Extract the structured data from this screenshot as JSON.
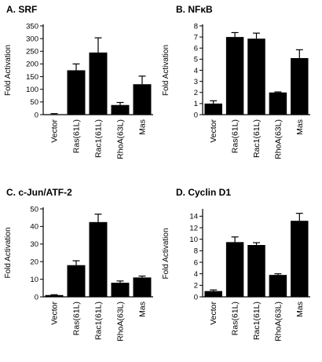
{
  "chart_data": [
    {
      "type": "bar",
      "title": "A. SRF",
      "ylabel": "Fold Activation",
      "xlabel": "",
      "categories": [
        "Vector",
        "Ras(61L)",
        "Rac1(61L)",
        "RhoA(63L)",
        "Mas"
      ],
      "values": [
        1,
        175,
        245,
        38,
        120
      ],
      "errors": [
        3,
        25,
        58,
        10,
        32
      ],
      "ylim": [
        0,
        350
      ],
      "yticks": [
        0,
        50,
        100,
        150,
        200,
        250,
        300,
        350
      ]
    },
    {
      "type": "bar",
      "title": "B. NFκB",
      "ylabel": "Fold Activation",
      "xlabel": "",
      "categories": [
        "Vector",
        "Ras(61L)",
        "Rac1(61L)",
        "RhoA(63L)",
        "Mas"
      ],
      "values": [
        1,
        7,
        6.85,
        2,
        5.1
      ],
      "errors": [
        0.25,
        0.4,
        0.5,
        0.05,
        0.75
      ],
      "ylim": [
        0,
        8
      ],
      "yticks": [
        0,
        1,
        2,
        3,
        4,
        5,
        6,
        7,
        8
      ]
    },
    {
      "type": "bar",
      "title": "C. c-Jun/ATF-2",
      "ylabel": "Fold Activation",
      "xlabel": "",
      "categories": [
        "Vector",
        "Ras(61L)",
        "Rac1(61L)",
        "RhoA(63L)",
        "Mas"
      ],
      "values": [
        1,
        18,
        42.5,
        8,
        11
      ],
      "errors": [
        0.2,
        2.5,
        4.5,
        1,
        0.8
      ],
      "ylim": [
        0,
        50
      ],
      "yticks": [
        0,
        10,
        20,
        30,
        40,
        50
      ]
    },
    {
      "type": "bar",
      "title": "D. Cyclin D1",
      "ylabel": "Fold Activation",
      "xlabel": "",
      "categories": [
        "Vector",
        "Ras(61L)",
        "Rac1(61L)",
        "RhoA(63L)",
        "Mas"
      ],
      "values": [
        1,
        9.5,
        9,
        3.8,
        13.2
      ],
      "errors": [
        0.2,
        0.9,
        0.4,
        0.2,
        1.3
      ],
      "ylim": [
        0,
        15
      ],
      "yticks": [
        0,
        2,
        4,
        6,
        8,
        10,
        12,
        14
      ]
    }
  ]
}
